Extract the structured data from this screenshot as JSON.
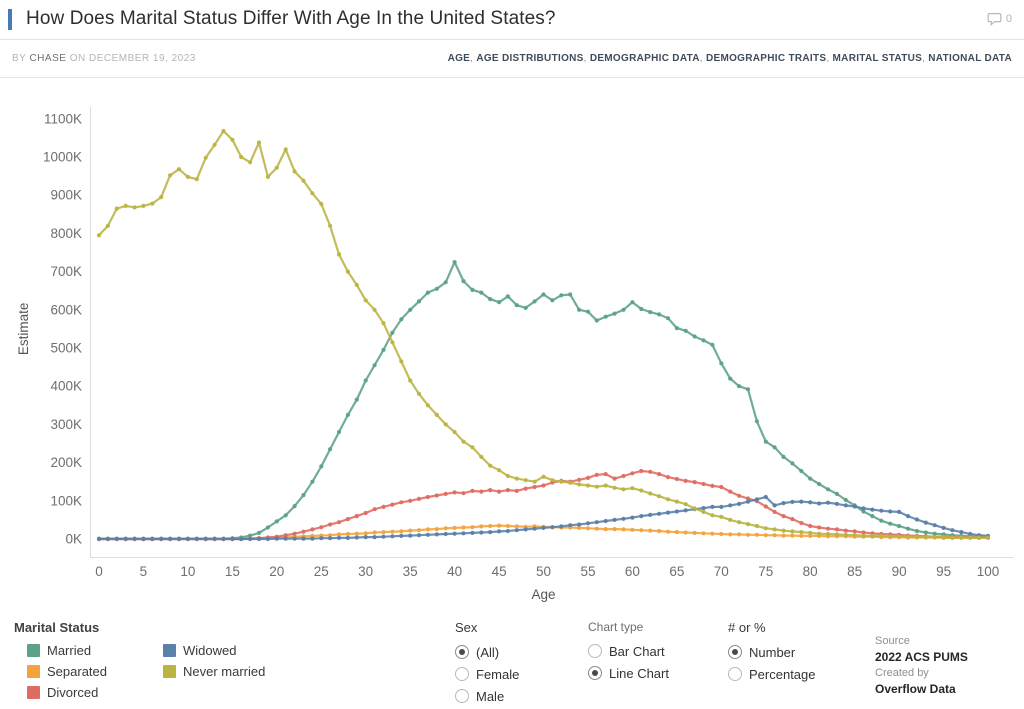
{
  "header": {
    "title": "How Does Marital Status Differ With Age In the United States?",
    "comment_count": "0"
  },
  "colors": {
    "accent_bar": "#4a7ab5"
  },
  "byline": {
    "by": "BY",
    "author": "CHASE",
    "date": "ON DECEMBER 19, 2023"
  },
  "tags": [
    "AGE",
    "AGE DISTRIBUTIONS",
    "DEMOGRAPHIC DATA",
    "DEMOGRAPHIC TRAITS",
    "MARITAL STATUS",
    "NATIONAL DATA"
  ],
  "chart_data": {
    "type": "line",
    "xlabel": "Age",
    "ylabel": "Estimate",
    "units": "thousands (K people)",
    "xlim": [
      0,
      100
    ],
    "ylim_k": [
      0,
      1100
    ],
    "x_ticks": [
      0,
      5,
      10,
      15,
      20,
      25,
      30,
      35,
      40,
      45,
      50,
      55,
      60,
      65,
      70,
      75,
      80,
      85,
      90,
      95,
      100
    ],
    "y_ticks_k": [
      0,
      100,
      200,
      300,
      400,
      500,
      600,
      700,
      800,
      900,
      1000,
      1100
    ],
    "y_tick_suffix": "K",
    "grid": false,
    "legend_position": "bottom-left",
    "x_step": 1,
    "series": [
      {
        "name": "Married",
        "color": "#5BA286",
        "values": [
          1,
          1,
          1,
          1,
          1,
          1,
          1,
          1,
          1,
          1,
          1,
          1,
          1,
          1,
          1,
          2,
          4,
          9,
          16,
          30,
          46,
          62,
          86,
          115,
          150,
          190,
          235,
          280,
          325,
          365,
          415,
          455,
          495,
          540,
          575,
          600,
          622,
          645,
          655,
          672,
          725,
          675,
          652,
          645,
          628,
          620,
          635,
          612,
          605,
          622,
          640,
          625,
          638,
          640,
          600,
          595,
          572,
          582,
          590,
          600,
          620,
          602,
          594,
          588,
          578,
          552,
          545,
          530,
          520,
          508,
          460,
          420,
          400,
          392,
          308,
          255,
          240,
          215,
          198,
          178,
          158,
          144,
          130,
          118,
          102,
          88,
          72,
          60,
          48,
          40,
          34,
          27,
          21,
          17,
          14,
          12,
          10,
          8,
          7,
          6,
          5
        ]
      },
      {
        "name": "Separated",
        "color": "#F2A33C",
        "values": [
          0,
          0,
          0,
          0,
          0,
          0,
          0,
          0,
          0,
          0,
          0,
          0,
          0,
          0,
          0,
          0,
          0,
          1,
          2,
          3,
          4,
          5,
          6,
          7,
          8,
          9,
          10,
          12,
          13,
          14,
          15,
          17,
          18,
          19,
          20,
          22,
          23,
          25,
          26,
          28,
          29,
          30,
          31,
          33,
          34,
          35,
          34,
          33,
          32,
          33,
          32,
          31,
          30,
          30,
          29,
          28,
          27,
          26,
          26,
          25,
          24,
          23,
          22,
          21,
          19,
          18,
          17,
          16,
          15,
          14,
          13,
          12,
          12,
          11,
          11,
          10,
          10,
          9,
          9,
          8,
          8,
          8,
          7,
          7,
          7,
          6,
          6,
          6,
          5,
          5,
          5,
          4,
          4,
          4,
          4,
          3,
          3,
          3,
          3,
          3,
          3
        ]
      },
      {
        "name": "Divorced",
        "color": "#E06B62",
        "values": [
          0,
          0,
          0,
          0,
          0,
          0,
          0,
          0,
          0,
          0,
          0,
          0,
          0,
          0,
          0,
          0,
          0,
          1,
          2,
          4,
          6,
          10,
          14,
          19,
          25,
          31,
          38,
          44,
          52,
          60,
          68,
          78,
          84,
          90,
          96,
          100,
          105,
          110,
          114,
          118,
          122,
          120,
          126,
          124,
          128,
          124,
          128,
          126,
          132,
          136,
          140,
          148,
          152,
          150,
          155,
          160,
          168,
          170,
          158,
          165,
          172,
          178,
          176,
          170,
          162,
          157,
          152,
          149,
          144,
          139,
          136,
          124,
          113,
          106,
          99,
          85,
          71,
          60,
          52,
          42,
          34,
          30,
          27,
          25,
          22,
          20,
          17,
          15,
          13,
          12,
          11,
          9,
          8,
          7,
          6,
          6,
          5,
          5,
          4,
          4,
          4
        ]
      },
      {
        "name": "Widowed",
        "color": "#5B80A9",
        "values": [
          0,
          0,
          0,
          0,
          0,
          0,
          0,
          0,
          0,
          0,
          0,
          0,
          0,
          0,
          0,
          0,
          0,
          0,
          0,
          0,
          1,
          1,
          1,
          1,
          1,
          2,
          2,
          3,
          3,
          4,
          5,
          5,
          6,
          7,
          8,
          9,
          10,
          11,
          12,
          13,
          14,
          15,
          16,
          17,
          18,
          20,
          21,
          23,
          25,
          27,
          29,
          31,
          33,
          36,
          38,
          41,
          44,
          47,
          50,
          53,
          56,
          60,
          63,
          66,
          69,
          72,
          75,
          78,
          81,
          84,
          84,
          88,
          92,
          98,
          104,
          110,
          88,
          94,
          97,
          98,
          96,
          93,
          95,
          92,
          88,
          85,
          80,
          77,
          74,
          72,
          71,
          60,
          51,
          43,
          36,
          29,
          23,
          18,
          13,
          10,
          8
        ]
      },
      {
        "name": "Never married",
        "color": "#BAB441",
        "values": [
          795,
          820,
          865,
          872,
          868,
          872,
          878,
          895,
          952,
          968,
          948,
          942,
          998,
          1032,
          1068,
          1045,
          1000,
          986,
          1038,
          948,
          972,
          1020,
          962,
          938,
          905,
          877,
          820,
          745,
          700,
          665,
          625,
          600,
          565,
          515,
          465,
          415,
          380,
          350,
          325,
          300,
          280,
          255,
          240,
          215,
          192,
          180,
          165,
          158,
          154,
          150,
          163,
          154,
          150,
          147,
          143,
          140,
          137,
          140,
          134,
          130,
          133,
          127,
          119,
          112,
          104,
          98,
          91,
          80,
          71,
          62,
          58,
          50,
          44,
          39,
          34,
          28,
          25,
          22,
          20,
          18,
          16,
          14,
          13,
          12,
          11,
          10,
          9,
          8,
          8,
          7,
          7,
          6,
          6,
          5,
          5,
          5,
          4,
          4,
          4,
          4,
          4
        ]
      }
    ]
  },
  "legend": {
    "title": "Marital Status",
    "columns": [
      [
        "Married",
        "Separated",
        "Divorced"
      ],
      [
        "Widowed",
        "Never married"
      ]
    ]
  },
  "controls": {
    "groups": [
      {
        "label": "Sex",
        "options": [
          {
            "label": "(All)",
            "selected": true
          },
          {
            "label": "Female",
            "selected": false
          },
          {
            "label": "Male",
            "selected": false
          }
        ]
      },
      {
        "label": "Chart type",
        "options": [
          {
            "label": "Bar Chart",
            "selected": false
          },
          {
            "label": "Line Chart",
            "selected": true
          }
        ]
      },
      {
        "label": "# or %",
        "options": [
          {
            "label": "Number",
            "selected": true
          },
          {
            "label": "Percentage",
            "selected": false
          }
        ]
      }
    ]
  },
  "source": {
    "label": "Source",
    "value": "2022 ACS PUMS",
    "created_label": "Created by",
    "created_value": "Overflow Data"
  }
}
